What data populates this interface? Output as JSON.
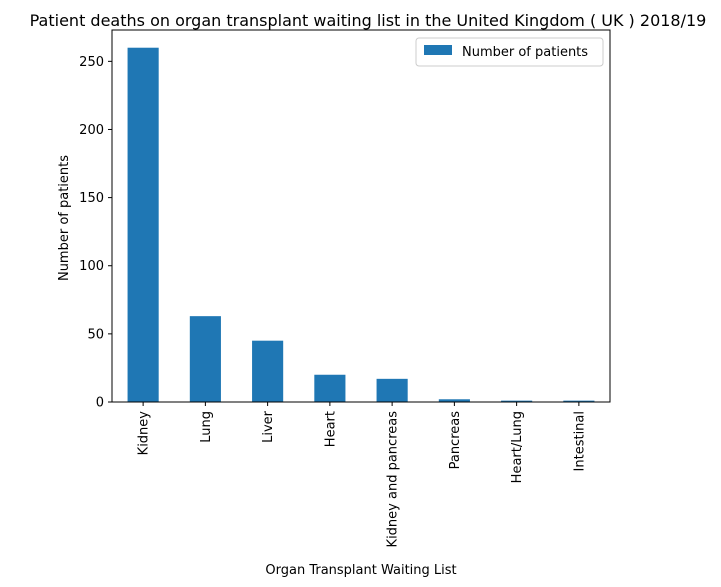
{
  "chart_data": {
    "type": "bar",
    "title": "Patient deaths on organ transplant waiting list in the United Kingdom ( UK ) 2018/19",
    "xlabel": "Organ Transplant Waiting List",
    "ylabel": "Number of patients",
    "categories": [
      "Kidney",
      "Lung",
      "Liver",
      "Heart",
      "Kidney and pancreas",
      "Pancreas",
      "Heart/Lung",
      "Intestinal"
    ],
    "series": [
      {
        "name": "Number of patients",
        "values": [
          260,
          63,
          45,
          20,
          17,
          2,
          1,
          1
        ],
        "color": "#1f77b4"
      }
    ],
    "ylim": [
      0,
      273
    ],
    "yticks": [
      0,
      50,
      100,
      150,
      200,
      250
    ],
    "grid": false,
    "legend_position": "top-right"
  }
}
